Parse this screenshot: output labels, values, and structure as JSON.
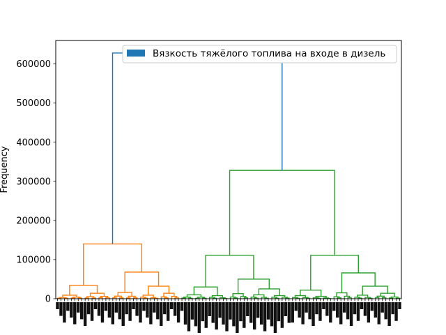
{
  "chart_data": {
    "type": "dendrogram",
    "ylabel": "Frequency",
    "ylim": [
      0,
      660000
    ],
    "yticks": [
      0,
      100000,
      200000,
      300000,
      400000,
      500000,
      600000
    ],
    "ytick_labels": [
      "0",
      "100000",
      "200000",
      "300000",
      "400000",
      "500000",
      "600000"
    ],
    "legend": {
      "label": "Вязкость тяжёлого топлива на входе в дизель",
      "color": "#1f77b4",
      "placement": "top-right"
    },
    "colors": {
      "root": "#1f77b4",
      "left_cluster": "#ff7f0e",
      "right_cluster": "#2ca02c"
    },
    "leaf_count": 100,
    "merges": [
      {
        "cluster": "root",
        "height": 628000,
        "children_heights": [
          140000,
          328000
        ],
        "color": "#1f77b4"
      },
      {
        "cluster": "left",
        "height": 140000,
        "children_heights": [
          34000,
          68000
        ],
        "color": "#ff7f0e"
      },
      {
        "cluster": "left-a",
        "height": 34000,
        "children_heights": [
          9000,
          14000
        ],
        "color": "#ff7f0e"
      },
      {
        "cluster": "left-b",
        "height": 68000,
        "children_heights": [
          16000,
          32000
        ],
        "color": "#ff7f0e"
      },
      {
        "cluster": "right",
        "height": 328000,
        "children_heights": [
          111000,
          111000
        ],
        "color": "#2ca02c"
      },
      {
        "cluster": "right-a",
        "height": 111000,
        "children_heights": [
          30000,
          50000
        ],
        "color": "#2ca02c"
      },
      {
        "cluster": "right-b",
        "height": 111000,
        "children_heights": [
          22000,
          66000
        ],
        "color": "#2ca02c"
      }
    ]
  }
}
